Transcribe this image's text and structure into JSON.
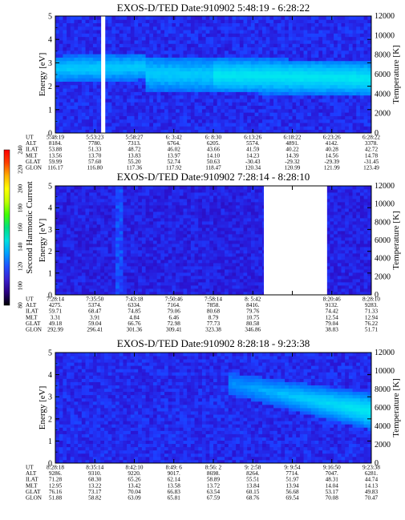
{
  "colorbar": {
    "label": "Second Harmonic Current",
    "ticks": [
      "80",
      "100",
      "120",
      "140",
      "160",
      "180",
      "200",
      "220",
      "240"
    ],
    "range": [
      80,
      240
    ],
    "colors": [
      "#000000",
      "#2a0080",
      "#3a20d0",
      "#2050ff",
      "#00a0ff",
      "#00e0e0",
      "#00e080",
      "#40ff00",
      "#c0ff00",
      "#ffff00",
      "#ffb000",
      "#ff4000",
      "#ff0000"
    ]
  },
  "chart_data": [
    {
      "type": "heatmap",
      "title": "EXOS-D/TED   Date:910902  5:48:19 - 6:28:22",
      "ylabel": "Energy [eV]",
      "ylabel_right": "Temperature [K]",
      "ylim": [
        0,
        5
      ],
      "ylim_right": [
        0,
        12000
      ],
      "yticks": [
        "0",
        "1",
        "2",
        "3",
        "4",
        "5"
      ],
      "yticks_right": [
        "0",
        "2000",
        "4000",
        "6000",
        "8000",
        "10000",
        "12000"
      ],
      "data_gap_fraction": [
        0.145,
        0.158
      ],
      "ephemeris_labels": [
        "UT",
        "ALT",
        "ILAT",
        "MLT",
        "GLAT",
        "GLON"
      ],
      "ephemeris": [
        [
          "5:48:19",
          "8184.",
          "53.88",
          "13.56",
          "59.99",
          "116.17"
        ],
        [
          "5:53:23",
          "7780.",
          "51.33",
          "13.70",
          "57.60",
          "116.80"
        ],
        [
          "5:58:27",
          "7313.",
          "48.72",
          "13.83",
          "55.20",
          "117.36"
        ],
        [
          "6: 3:42",
          "6764.",
          "46.02",
          "13.97",
          "52.74",
          "117.92"
        ],
        [
          "6: 8:30",
          "6205.",
          "43.66",
          "14.10",
          "50.63",
          "118.47"
        ],
        [
          "6:13:26",
          "5574.",
          "41.59",
          "14.23",
          "-30.43",
          "120.34"
        ],
        [
          "6:18:22",
          "4891.",
          "40.22",
          "14.39",
          "-29.32",
          "120.99"
        ],
        [
          "6:23:26",
          "4142.",
          "40.28",
          "14.56",
          "-29.39",
          "121.99"
        ],
        [
          "6:28:22",
          "3378.",
          "42.72",
          "14.78",
          "-31.45",
          "123.49"
        ]
      ]
    },
    {
      "type": "heatmap",
      "title": "EXOS-D/TED   Date:910902  7:28:14 - 8:28:10",
      "ylabel": "Energy [eV]",
      "ylabel_right": "Temperature [K]",
      "ylim": [
        0,
        5
      ],
      "ylim_right": [
        0,
        12000
      ],
      "yticks": [
        "0",
        "1",
        "2",
        "3",
        "4",
        "5"
      ],
      "yticks_right": [
        "0",
        "2000",
        "4000",
        "6000",
        "8000",
        "10000",
        "12000"
      ],
      "data_gap_fraction": [
        0.66,
        0.86
      ],
      "ephemeris_labels": [
        "UT",
        "ALT",
        "ILAT",
        "MLT",
        "GLAT",
        "GLON"
      ],
      "ephemeris": [
        [
          "7:28:14",
          "4275.",
          "59.71",
          "3.31",
          "49.18",
          "292.99"
        ],
        [
          "7:35:50",
          "5374.",
          "68.47",
          "3.91",
          "59.04",
          "296.41"
        ],
        [
          "7:43:18",
          "6334.",
          "74.85",
          "4.84",
          "66.76",
          "301.36"
        ],
        [
          "7:50:46",
          "7164.",
          "79.06",
          "6.46",
          "72.98",
          "309.41"
        ],
        [
          "7:58:14",
          "7858.",
          "80.68",
          "8.79",
          "77.73",
          "323.38"
        ],
        [
          "8: 5:42",
          "8416.",
          "79.76",
          "10.75",
          "80.58",
          "346.86"
        ],
        [
          "",
          "",
          "",
          "",
          "",
          ""
        ],
        [
          "8:20:46",
          "9132.",
          "74.42",
          "12.54",
          "79.04",
          "38.83"
        ],
        [
          "8:28:10",
          "9283.",
          "71.33",
          "12.94",
          "76.22",
          "51.71"
        ]
      ]
    },
    {
      "type": "heatmap",
      "title": "EXOS-D/TED   Date:910902  8:28:18 - 9:23:38",
      "ylabel": "Energy [eV]",
      "ylabel_right": "Temperature [K]",
      "ylim": [
        0,
        5
      ],
      "ylim_right": [
        0,
        12000
      ],
      "yticks": [
        "0",
        "1",
        "2",
        "3",
        "4",
        "5"
      ],
      "yticks_right": [
        "0",
        "2000",
        "4000",
        "6000",
        "8000",
        "10000",
        "12000"
      ],
      "data_gap_fraction": null,
      "ephemeris_labels": [
        "UT",
        "ALT",
        "ILAT",
        "MLT",
        "GLAT",
        "GLON"
      ],
      "ephemeris": [
        [
          "8:28:18",
          "9286.",
          "71.28",
          "12.95",
          "76.16",
          "51.88"
        ],
        [
          "8:35:14",
          "9310.",
          "68.30",
          "13.22",
          "73.17",
          "58.82"
        ],
        [
          "8:42:10",
          "9220.",
          "65.26",
          "13.42",
          "70.04",
          "63.09"
        ],
        [
          "8:49: 6",
          "9017.",
          "62.14",
          "13.58",
          "66.83",
          "65.81"
        ],
        [
          "8:56: 2",
          "8698.",
          "58.89",
          "13.72",
          "63.54",
          "67.59"
        ],
        [
          "9: 2:58",
          "8264.",
          "55.51",
          "13.84",
          "60.15",
          "68.76"
        ],
        [
          "9: 9:54",
          "7714.",
          "51.97",
          "13.94",
          "56.68",
          "69.54"
        ],
        [
          "9:16:50",
          "7047.",
          "48.31",
          "14.04",
          "53.17",
          "70.08"
        ],
        [
          "9:23:38",
          "6281.",
          "44.74",
          "14.13",
          "49.83",
          "70.47"
        ]
      ]
    }
  ]
}
